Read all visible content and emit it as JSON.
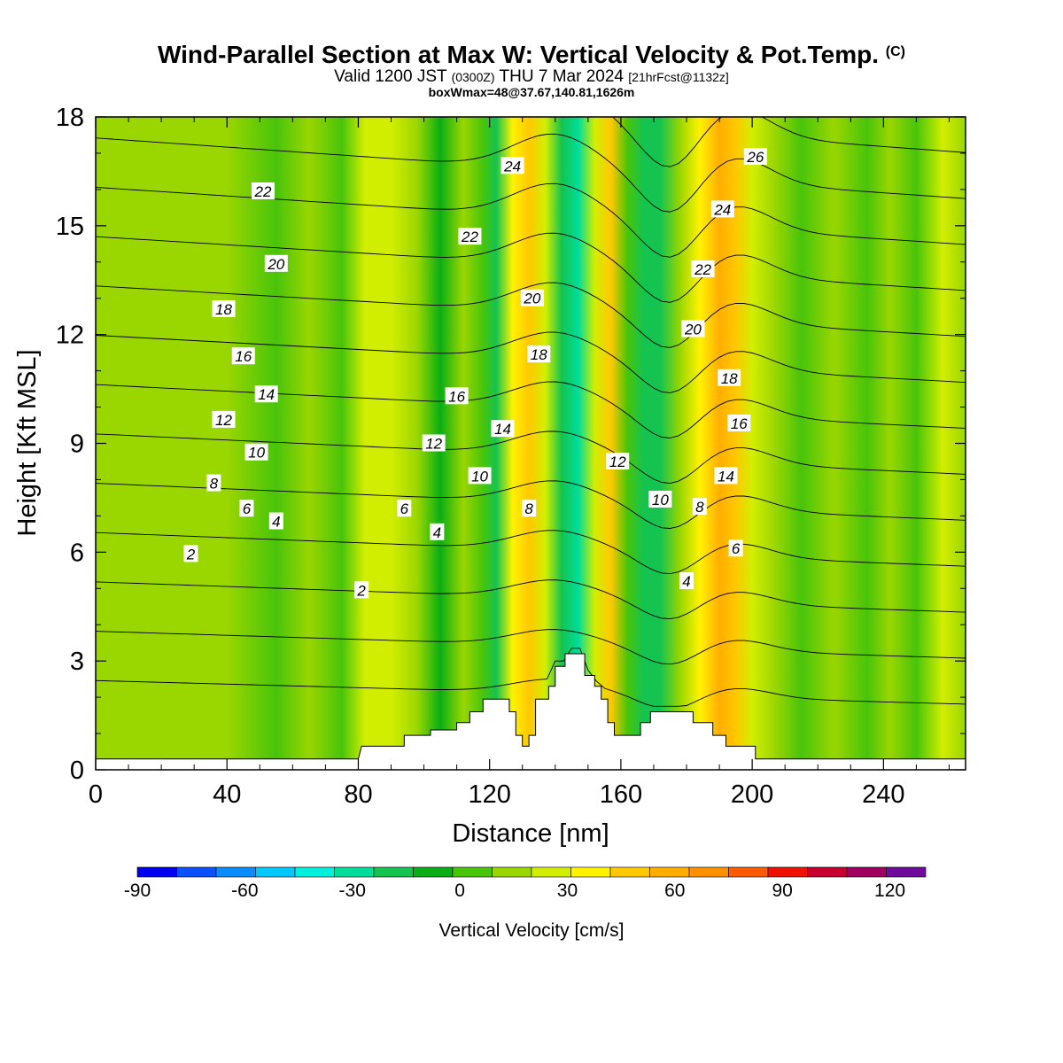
{
  "header": {
    "title": "Wind-Parallel Section at Max W: Vertical Velocity & Pot.Temp.",
    "copyright": "(C)",
    "valid_prefix": "Valid 1200 JST",
    "valid_utc": "(0300Z)",
    "valid_date": "THU 7 Mar 2024",
    "forecast": "[21hrFcst@1132z]",
    "box_info": "boxWmax=48@37.67,140.81,1626m"
  },
  "colors": {
    "bins": [
      "#0000f0",
      "#0a50ff",
      "#0a8cff",
      "#00c8ff",
      "#00f0dc",
      "#00dc9a",
      "#14c350",
      "#0aae14",
      "#48c40a",
      "#9ad600",
      "#d2ee00",
      "#fff200",
      "#ffc800",
      "#ffae00",
      "#ff9000",
      "#ff5a00",
      "#f01000",
      "#c80030",
      "#a00060",
      "#6e0a9c"
    ],
    "contour": "#000000"
  },
  "chart_data": {
    "type": "heatmap",
    "xlabel": "Distance [nm]",
    "ylabel": "Height [Kft MSL]",
    "xlim": [
      0,
      265
    ],
    "ylim": [
      0,
      18
    ],
    "xticks": [
      0,
      40,
      80,
      120,
      160,
      200,
      240
    ],
    "yticks": [
      0,
      3,
      6,
      9,
      12,
      15,
      18
    ],
    "colorbar": {
      "label": "Vertical Velocity [cm/s]",
      "range": [
        -90,
        130
      ],
      "step": 10,
      "tick_values": [
        -90,
        -60,
        -30,
        0,
        30,
        60,
        90,
        120
      ]
    },
    "vertical_velocity_bands": [
      {
        "x": 0,
        "w": 5
      },
      {
        "x": 10,
        "w": 3
      },
      {
        "x": 25,
        "w": 8
      },
      {
        "x": 40,
        "w": 2
      },
      {
        "x": 55,
        "w": -2
      },
      {
        "x": 65,
        "w": 2
      },
      {
        "x": 75,
        "w": -1
      },
      {
        "x": 82,
        "w": 12
      },
      {
        "x": 90,
        "w": 18
      },
      {
        "x": 98,
        "w": 4
      },
      {
        "x": 105,
        "w": -12
      },
      {
        "x": 112,
        "w": 8
      },
      {
        "x": 118,
        "w": -8
      },
      {
        "x": 122,
        "w": -22
      },
      {
        "x": 127,
        "w": 22
      },
      {
        "x": 132,
        "w": 38
      },
      {
        "x": 137,
        "w": 10
      },
      {
        "x": 142,
        "w": -22
      },
      {
        "x": 147,
        "w": -38
      },
      {
        "x": 152,
        "w": 12
      },
      {
        "x": 157,
        "w": 32
      },
      {
        "x": 162,
        "w": -10
      },
      {
        "x": 167,
        "w": -30
      },
      {
        "x": 172,
        "w": -22
      },
      {
        "x": 178,
        "w": 2
      },
      {
        "x": 184,
        "w": 22
      },
      {
        "x": 190,
        "w": 42
      },
      {
        "x": 195,
        "w": 34
      },
      {
        "x": 200,
        "w": 12
      },
      {
        "x": 207,
        "w": 0
      },
      {
        "x": 215,
        "w": -6
      },
      {
        "x": 225,
        "w": 4
      },
      {
        "x": 235,
        "w": -2
      },
      {
        "x": 242,
        "w": 6
      },
      {
        "x": 250,
        "w": -4
      },
      {
        "x": 258,
        "w": 10
      },
      {
        "x": 265,
        "w": 0
      }
    ],
    "theta_contours": [
      {
        "level": 2,
        "label": "2"
      },
      {
        "level": 4,
        "label": "4"
      },
      {
        "level": 6,
        "label": "6"
      },
      {
        "level": 8,
        "label": "8"
      },
      {
        "level": 10,
        "label": "10"
      },
      {
        "level": 12,
        "label": "12"
      },
      {
        "level": 14,
        "label": "14"
      },
      {
        "level": 16,
        "label": "16"
      },
      {
        "level": 18,
        "label": "18"
      },
      {
        "level": 20,
        "label": "20"
      },
      {
        "level": 22,
        "label": "22"
      },
      {
        "level": 24,
        "label": "24"
      },
      {
        "level": 26,
        "label": "26"
      }
    ],
    "contour_labels": [
      {
        "text": "2",
        "x": 29,
        "y": 5.95
      },
      {
        "text": "2",
        "x": 81,
        "y": 4.95
      },
      {
        "text": "4",
        "x": 55,
        "y": 6.85
      },
      {
        "text": "4",
        "x": 104,
        "y": 6.55
      },
      {
        "text": "4",
        "x": 180,
        "y": 5.2
      },
      {
        "text": "6",
        "x": 46,
        "y": 7.2
      },
      {
        "text": "6",
        "x": 94,
        "y": 7.2
      },
      {
        "text": "6",
        "x": 195,
        "y": 6.1
      },
      {
        "text": "8",
        "x": 36,
        "y": 7.9
      },
      {
        "text": "8",
        "x": 132,
        "y": 7.2
      },
      {
        "text": "8",
        "x": 184,
        "y": 7.25
      },
      {
        "text": "10",
        "x": 49,
        "y": 8.75
      },
      {
        "text": "10",
        "x": 117,
        "y": 8.1
      },
      {
        "text": "10",
        "x": 172,
        "y": 7.45
      },
      {
        "text": "12",
        "x": 39,
        "y": 9.65
      },
      {
        "text": "12",
        "x": 103,
        "y": 9.0
      },
      {
        "text": "12",
        "x": 159,
        "y": 8.5
      },
      {
        "text": "14",
        "x": 52,
        "y": 10.35
      },
      {
        "text": "14",
        "x": 124,
        "y": 9.4
      },
      {
        "text": "14",
        "x": 192,
        "y": 8.1
      },
      {
        "text": "16",
        "x": 45,
        "y": 11.4
      },
      {
        "text": "16",
        "x": 110,
        "y": 10.3
      },
      {
        "text": "16",
        "x": 196,
        "y": 9.55
      },
      {
        "text": "18",
        "x": 39,
        "y": 12.7
      },
      {
        "text": "18",
        "x": 135,
        "y": 11.45
      },
      {
        "text": "18",
        "x": 193,
        "y": 10.8
      },
      {
        "text": "20",
        "x": 55,
        "y": 13.95
      },
      {
        "text": "20",
        "x": 133,
        "y": 13.0
      },
      {
        "text": "20",
        "x": 182,
        "y": 12.15
      },
      {
        "text": "22",
        "x": 51,
        "y": 15.95
      },
      {
        "text": "22",
        "x": 114,
        "y": 14.7
      },
      {
        "text": "22",
        "x": 185,
        "y": 13.8
      },
      {
        "text": "24",
        "x": 127,
        "y": 16.65
      },
      {
        "text": "24",
        "x": 191,
        "y": 15.45
      },
      {
        "text": "26",
        "x": 201,
        "y": 16.9
      }
    ],
    "terrain_kft": [
      {
        "x": 0,
        "h": 0.3
      },
      {
        "x": 80,
        "h": 0.3
      },
      {
        "x": 81,
        "h": 0.65
      },
      {
        "x": 94,
        "h": 0.65
      },
      {
        "x": 94,
        "h": 0.95
      },
      {
        "x": 102,
        "h": 0.95
      },
      {
        "x": 102,
        "h": 1.1
      },
      {
        "x": 110,
        "h": 1.1
      },
      {
        "x": 110,
        "h": 1.3
      },
      {
        "x": 114,
        "h": 1.3
      },
      {
        "x": 114,
        "h": 1.6
      },
      {
        "x": 118,
        "h": 1.6
      },
      {
        "x": 118,
        "h": 1.95
      },
      {
        "x": 126,
        "h": 1.95
      },
      {
        "x": 126,
        "h": 1.6
      },
      {
        "x": 128,
        "h": 1.6
      },
      {
        "x": 128,
        "h": 0.95
      },
      {
        "x": 130,
        "h": 0.95
      },
      {
        "x": 130,
        "h": 0.65
      },
      {
        "x": 132,
        "h": 0.65
      },
      {
        "x": 132,
        "h": 0.95
      },
      {
        "x": 134,
        "h": 0.95
      },
      {
        "x": 134,
        "h": 1.95
      },
      {
        "x": 138,
        "h": 1.95
      },
      {
        "x": 138,
        "h": 2.3
      },
      {
        "x": 140,
        "h": 2.3
      },
      {
        "x": 140,
        "h": 2.85
      },
      {
        "x": 143,
        "h": 2.85
      },
      {
        "x": 143,
        "h": 3.2
      },
      {
        "x": 149,
        "h": 3.2
      },
      {
        "x": 149,
        "h": 2.6
      },
      {
        "x": 152,
        "h": 2.6
      },
      {
        "x": 152,
        "h": 2.3
      },
      {
        "x": 154,
        "h": 2.3
      },
      {
        "x": 154,
        "h": 1.95
      },
      {
        "x": 156,
        "h": 1.95
      },
      {
        "x": 156,
        "h": 1.3
      },
      {
        "x": 158,
        "h": 1.3
      },
      {
        "x": 158,
        "h": 0.95
      },
      {
        "x": 166,
        "h": 0.95
      },
      {
        "x": 166,
        "h": 1.3
      },
      {
        "x": 169,
        "h": 1.3
      },
      {
        "x": 169,
        "h": 1.6
      },
      {
        "x": 182,
        "h": 1.6
      },
      {
        "x": 182,
        "h": 1.3
      },
      {
        "x": 188,
        "h": 1.3
      },
      {
        "x": 188,
        "h": 0.95
      },
      {
        "x": 192,
        "h": 0.95
      },
      {
        "x": 192,
        "h": 0.65
      },
      {
        "x": 201,
        "h": 0.65
      },
      {
        "x": 201,
        "h": 0.3
      },
      {
        "x": 265,
        "h": 0.3
      }
    ]
  }
}
